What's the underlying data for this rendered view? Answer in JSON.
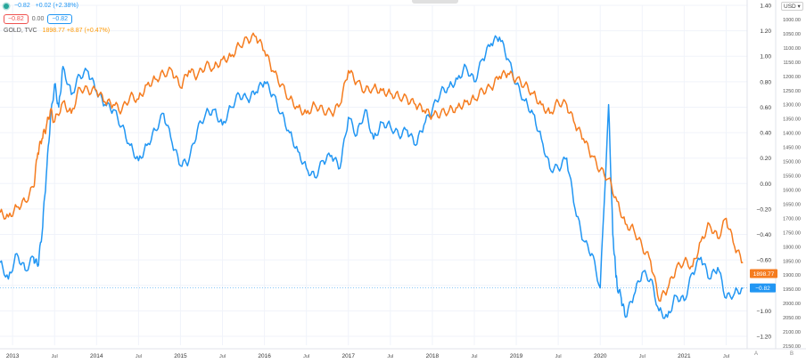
{
  "legend": {
    "series_value": "−0.82",
    "series_change": "+0.02 (+2.38%)",
    "scale_low": "−0.82",
    "scale_mid": "0.00",
    "scale_high": "−0.82",
    "gold_name": "GOLD, TVC",
    "gold_values": "1898.77 +8.87 (+0.47%)"
  },
  "currency": "USD",
  "axis_buttons": {
    "auto": "A",
    "log": "B"
  },
  "price_tags": {
    "gold": "1898.77",
    "series": "−0.82"
  },
  "colors": {
    "blue": "#2196f3",
    "orange": "#f57c1f",
    "gold_tag": "#f57c1f",
    "blue_tag": "#2196f3"
  },
  "chart_data": {
    "type": "line",
    "x_tick_labels": [
      "2013",
      "Jul",
      "2014",
      "Jul",
      "2015",
      "Jul",
      "2016",
      "Jul",
      "2017",
      "Jul",
      "2018",
      "Jul",
      "2019",
      "Jul",
      "2020",
      "Jul",
      "2021",
      "Jul"
    ],
    "left_axis_labels": [
      "1.40",
      "1.20",
      "1.00",
      "0.80",
      "0.60",
      "0.40",
      "0.20",
      "0.00",
      "−0.20",
      "−0.40",
      "−0.60",
      "−0.80",
      "−1.00",
      "−1.20"
    ],
    "left_axis_values": [
      1.4,
      1.2,
      1.0,
      0.8,
      0.6,
      0.4,
      0.2,
      0.0,
      -0.2,
      -0.4,
      -0.6,
      -0.8,
      -1.0,
      -1.2
    ],
    "right_axis_labels": [
      "1000.00",
      "1050.00",
      "1100.00",
      "1150.00",
      "1200.00",
      "1250.00",
      "1300.00",
      "1350.00",
      "1400.00",
      "1450.00",
      "1500.00",
      "1550.00",
      "1600.00",
      "1650.00",
      "1700.00",
      "1750.00",
      "1800.00",
      "1850.00",
      "1900.00",
      "1950.00",
      "2000.00",
      "2050.00",
      "2100.00",
      "2150.00"
    ],
    "right_axis_values": [
      1000,
      1050,
      1100,
      1150,
      1200,
      1250,
      1300,
      1350,
      1400,
      1450,
      1500,
      1550,
      1600,
      1650,
      1700,
      1750,
      1800,
      1850,
      1900,
      1950,
      2000,
      2050,
      2100,
      2150
    ],
    "right_axis_inverted": true,
    "x_range": [
      2012.85,
      2021.75
    ],
    "series": [
      {
        "name": "",
        "axis": "left",
        "color": "#2196f3",
        "x": [
          2012.85,
          2012.95,
          2013.05,
          2013.15,
          2013.25,
          2013.3,
          2013.35,
          2013.4,
          2013.45,
          2013.5,
          2013.55,
          2013.6,
          2013.7,
          2013.8,
          2013.9,
          2014.0,
          2014.1,
          2014.2,
          2014.3,
          2014.4,
          2014.5,
          2014.6,
          2014.7,
          2014.8,
          2014.9,
          2015.0,
          2015.1,
          2015.2,
          2015.3,
          2015.4,
          2015.5,
          2015.6,
          2015.7,
          2015.8,
          2015.9,
          2016.0,
          2016.1,
          2016.2,
          2016.3,
          2016.4,
          2016.5,
          2016.6,
          2016.7,
          2016.8,
          2016.9,
          2017.0,
          2017.1,
          2017.2,
          2017.3,
          2017.4,
          2017.5,
          2017.6,
          2017.7,
          2017.8,
          2017.9,
          2018.0,
          2018.1,
          2018.2,
          2018.3,
          2018.4,
          2018.5,
          2018.6,
          2018.7,
          2018.8,
          2018.9,
          2019.0,
          2019.1,
          2019.2,
          2019.3,
          2019.4,
          2019.5,
          2019.6,
          2019.7,
          2019.8,
          2019.9,
          2020.0,
          2020.1,
          2020.15,
          2020.18,
          2020.2,
          2020.25,
          2020.3,
          2020.4,
          2020.5,
          2020.6,
          2020.7,
          2020.8,
          2020.9,
          2021.0,
          2021.1,
          2021.2,
          2021.3,
          2021.4,
          2021.5,
          2021.6,
          2021.7
        ],
        "y": [
          -0.62,
          -0.75,
          -0.55,
          -0.68,
          -0.58,
          -0.65,
          -0.4,
          0.05,
          0.5,
          0.78,
          0.6,
          0.92,
          0.7,
          0.85,
          0.88,
          0.72,
          0.62,
          0.58,
          0.45,
          0.3,
          0.18,
          0.3,
          0.42,
          0.55,
          0.32,
          0.14,
          0.18,
          0.42,
          0.55,
          0.58,
          0.46,
          0.6,
          0.7,
          0.66,
          0.72,
          0.8,
          0.7,
          0.55,
          0.4,
          0.25,
          0.12,
          0.05,
          0.18,
          0.22,
          0.12,
          0.52,
          0.38,
          0.58,
          0.35,
          0.48,
          0.45,
          0.38,
          0.42,
          0.3,
          0.46,
          0.58,
          0.72,
          0.76,
          0.82,
          0.92,
          0.8,
          0.98,
          1.1,
          1.15,
          0.98,
          0.78,
          0.65,
          0.55,
          0.35,
          0.12,
          0.12,
          0.2,
          -0.2,
          -0.45,
          -0.55,
          -0.82,
          0.62,
          -0.4,
          -0.65,
          -0.8,
          -0.9,
          -1.05,
          -0.88,
          -0.7,
          -0.75,
          -1.0,
          -1.05,
          -0.88,
          -0.92,
          -0.7,
          -0.58,
          -0.75,
          -0.66,
          -0.9,
          -0.86,
          -0.82
        ]
      },
      {
        "name": "GOLD, TVC",
        "axis": "right",
        "color": "#f57c1f",
        "x": [
          2012.85,
          2012.95,
          2013.05,
          2013.15,
          2013.25,
          2013.3,
          2013.35,
          2013.4,
          2013.45,
          2013.5,
          2013.6,
          2013.7,
          2013.8,
          2013.9,
          2014.0,
          2014.1,
          2014.2,
          2014.3,
          2014.4,
          2014.5,
          2014.6,
          2014.7,
          2014.8,
          2014.9,
          2015.0,
          2015.1,
          2015.2,
          2015.3,
          2015.4,
          2015.5,
          2015.6,
          2015.7,
          2015.8,
          2015.9,
          2016.0,
          2016.1,
          2016.2,
          2016.3,
          2016.4,
          2016.5,
          2016.6,
          2016.7,
          2016.8,
          2016.9,
          2017.0,
          2017.1,
          2017.2,
          2017.3,
          2017.4,
          2017.5,
          2017.6,
          2017.7,
          2017.8,
          2017.9,
          2018.0,
          2018.1,
          2018.2,
          2018.3,
          2018.4,
          2018.5,
          2018.6,
          2018.7,
          2018.8,
          2018.9,
          2019.0,
          2019.1,
          2019.2,
          2019.3,
          2019.4,
          2019.5,
          2019.6,
          2019.7,
          2019.8,
          2019.9,
          2020.0,
          2020.1,
          2020.2,
          2020.3,
          2020.4,
          2020.5,
          2020.6,
          2020.7,
          2020.8,
          2020.9,
          2021.0,
          2021.1,
          2021.2,
          2021.3,
          2021.4,
          2021.5,
          2021.6,
          2021.7
        ],
        "y": [
          1680,
          1695,
          1660,
          1640,
          1590,
          1470,
          1420,
          1380,
          1320,
          1360,
          1290,
          1330,
          1240,
          1250,
          1250,
          1290,
          1300,
          1320,
          1270,
          1280,
          1230,
          1210,
          1190,
          1180,
          1240,
          1180,
          1200,
          1160,
          1170,
          1140,
          1130,
          1090,
          1070,
          1060,
          1110,
          1180,
          1230,
          1280,
          1310,
          1330,
          1300,
          1320,
          1330,
          1300,
          1180,
          1220,
          1250,
          1240,
          1250,
          1260,
          1270,
          1280,
          1300,
          1320,
          1340,
          1330,
          1320,
          1310,
          1290,
          1280,
          1250,
          1240,
          1200,
          1190,
          1210,
          1230,
          1260,
          1300,
          1330,
          1290,
          1300,
          1370,
          1420,
          1480,
          1530,
          1560,
          1640,
          1720,
          1740,
          1800,
          1850,
          1990,
          1950,
          1880,
          1850,
          1870,
          1780,
          1720,
          1770,
          1700,
          1800,
          1855
        ],
        "current": 1898.77,
        "current_change": 8.87,
        "current_change_pct": 0.47
      }
    ],
    "gridlines": true,
    "legend_position": "top-left"
  }
}
